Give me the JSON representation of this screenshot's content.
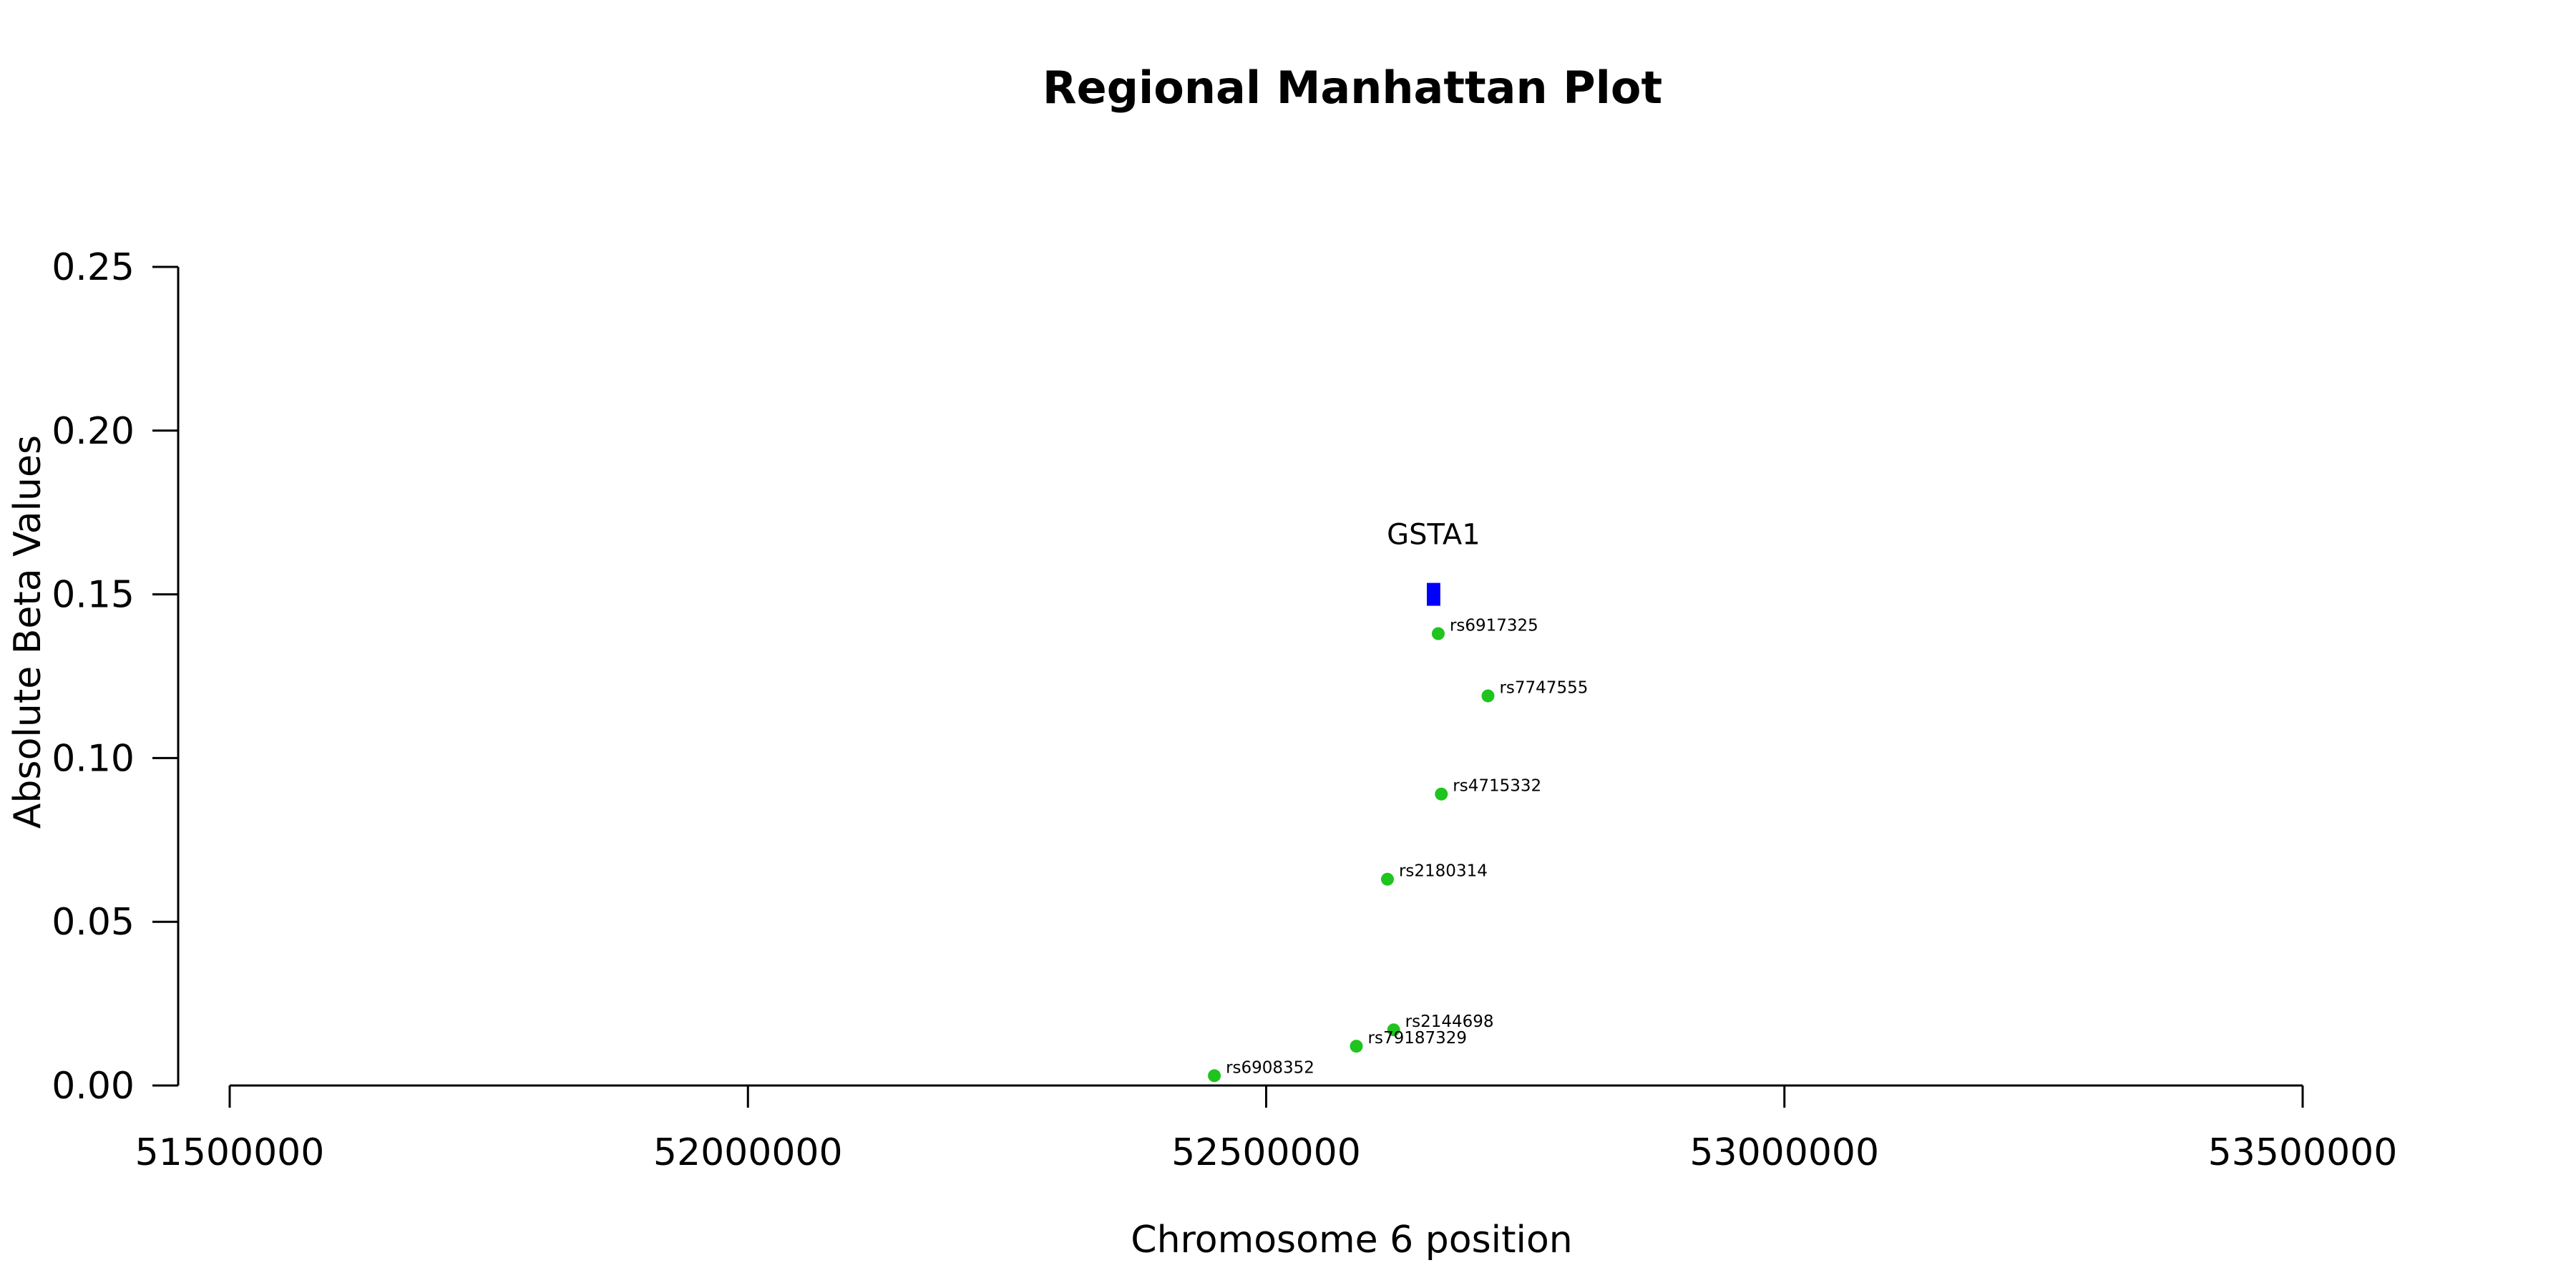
{
  "chart_data": {
    "type": "scatter",
    "title": "Regional Manhattan Plot",
    "xlabel": "Chromosome 6 position",
    "ylabel": "Absolute Beta Values",
    "xlim": [
      51500000,
      53500000
    ],
    "ylim": [
      0,
      0.25
    ],
    "x_ticks": [
      51500000,
      52000000,
      52500000,
      53000000,
      53500000
    ],
    "x_tick_labels": [
      "51500000",
      "52000000",
      "52500000",
      "53000000",
      "53500000"
    ],
    "y_ticks": [
      0,
      0.05,
      0.1,
      0.15,
      0.2,
      0.25
    ],
    "y_tick_labels": [
      "0.00",
      "0.05",
      "0.10",
      "0.15",
      "0.20",
      "0.25"
    ],
    "grid": false,
    "point_color": "#1fc41f",
    "points": [
      {
        "label": "rs6917325",
        "x": 52666000,
        "y": 0.138
      },
      {
        "label": "rs7747555",
        "x": 52714000,
        "y": 0.119
      },
      {
        "label": "rs4715332",
        "x": 52669000,
        "y": 0.089
      },
      {
        "label": "rs2180314",
        "x": 52617000,
        "y": 0.063
      },
      {
        "label": "rs2144698",
        "x": 52623000,
        "y": 0.017
      },
      {
        "label": "rs79187329",
        "x": 52587000,
        "y": 0.012
      },
      {
        "label": "rs6908352",
        "x": 52450000,
        "y": 0.003
      }
    ],
    "gene": {
      "name": "GSTA1",
      "x_start": 52655000,
      "x_end": 52668000,
      "y": 0.15,
      "color": "#0000ff"
    }
  }
}
